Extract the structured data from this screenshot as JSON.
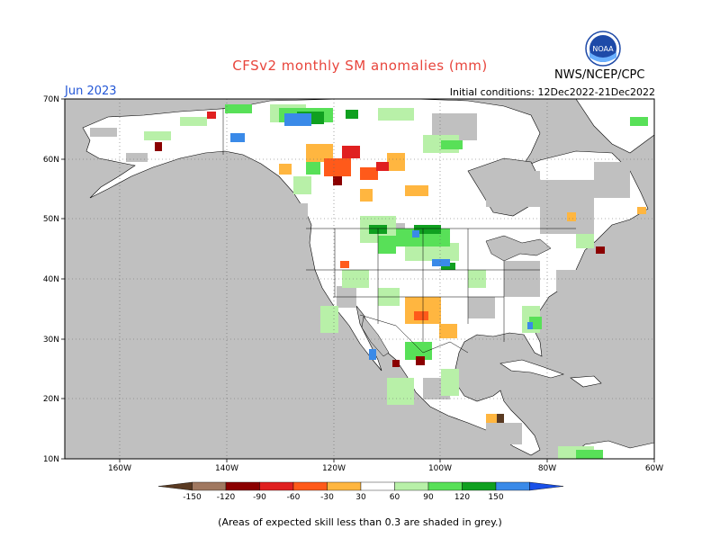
{
  "title": "CFSv2 monthly SM anomalies (mm)",
  "forecast_month": "Jun 2023",
  "initial_conditions": "Initial conditions: 12Dec2022-21Dec2022",
  "organization": "NWS/NCEP/CPC",
  "logo_text": "NOAA",
  "footnote": "(Areas of expected skill less than 0.3 are shaded in grey.)",
  "colors": {
    "low_skill": "#c0c0c0",
    "ocean": "#c0c0c0",
    "land": "#ffffff",
    "title": "#e8453c",
    "month": "#2457d6"
  },
  "chart_data": {
    "type": "heatmap",
    "xlabel_ticks": [
      "160W",
      "140W",
      "120W",
      "100W",
      "80W",
      "60W"
    ],
    "ylabel_ticks": [
      "70N",
      "60N",
      "50N",
      "40N",
      "30N",
      "20N",
      "10N"
    ],
    "lon_range": [
      -170,
      -60
    ],
    "lat_range": [
      10,
      70
    ],
    "colorbar": {
      "labels": [
        "-150",
        "-120",
        "-90",
        "-60",
        "-30",
        "30",
        "60",
        "90",
        "120",
        "150"
      ],
      "colors": [
        "#5a3a22",
        "#a07860",
        "#8b0000",
        "#e02020",
        "#ff5a1a",
        "#ffb640",
        "#ffffff",
        "#b8f0a8",
        "#58e058",
        "#10a020",
        "#3a8ae8",
        "#1a50e8"
      ]
    }
  }
}
